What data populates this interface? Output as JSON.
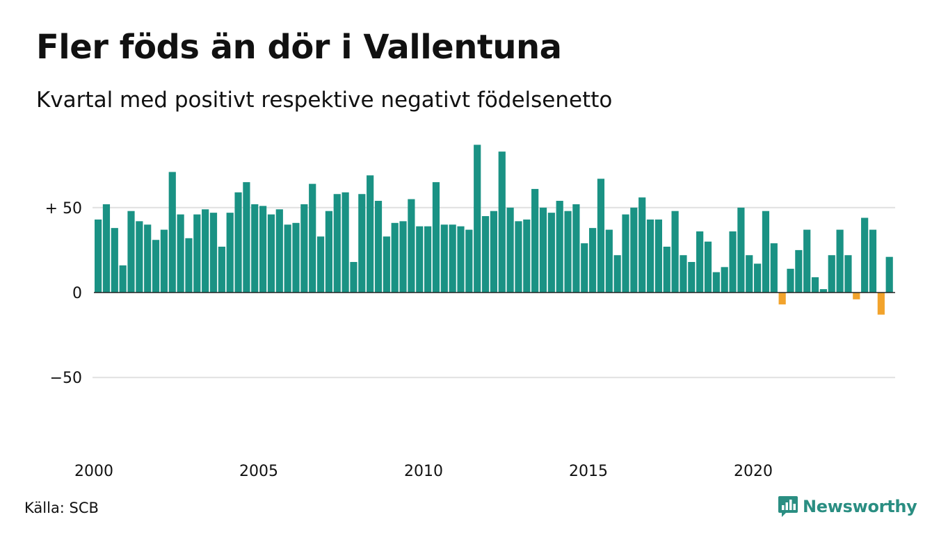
{
  "title": "Fler föds än dör i Vallentuna",
  "subtitle": "Kvartal med positivt respektive negativt födelsenetto",
  "source": "Källa: SCB",
  "brand": {
    "name": "Newsworthy",
    "icon": "newsworthy-logo-icon",
    "color": "#2a8e82"
  },
  "chart_data": {
    "type": "bar",
    "x_start": {
      "year": 2000,
      "quarter": 1
    },
    "x_ticks": [
      2000,
      2005,
      2010,
      2015,
      2020
    ],
    "y_ticks": [
      {
        "value": 50,
        "label": "+ 50"
      },
      {
        "value": 0,
        "label": "0"
      },
      {
        "value": -50,
        "label": "−50"
      }
    ],
    "ylim": [
      -85,
      87
    ],
    "grid": true,
    "colors": {
      "positive": "#1a9284",
      "negative": "#f2a32c",
      "grid": "#e0e0e0",
      "zero": "#222222"
    },
    "values": [
      43,
      52,
      38,
      16,
      48,
      42,
      40,
      31,
      37,
      71,
      46,
      32,
      46,
      49,
      47,
      27,
      47,
      59,
      65,
      52,
      51,
      46,
      49,
      40,
      41,
      52,
      64,
      33,
      48,
      58,
      59,
      18,
      58,
      69,
      54,
      33,
      41,
      42,
      55,
      39,
      39,
      65,
      40,
      40,
      39,
      37,
      87,
      45,
      48,
      83,
      50,
      42,
      43,
      61,
      50,
      47,
      54,
      48,
      52,
      29,
      38,
      67,
      37,
      22,
      46,
      50,
      56,
      43,
      43,
      27,
      48,
      22,
      18,
      36,
      30,
      12,
      15,
      36,
      50,
      22,
      17,
      48,
      29,
      -7,
      14,
      25,
      37,
      9,
      2,
      22,
      37,
      22,
      -4,
      44,
      37,
      -13,
      21
    ]
  }
}
